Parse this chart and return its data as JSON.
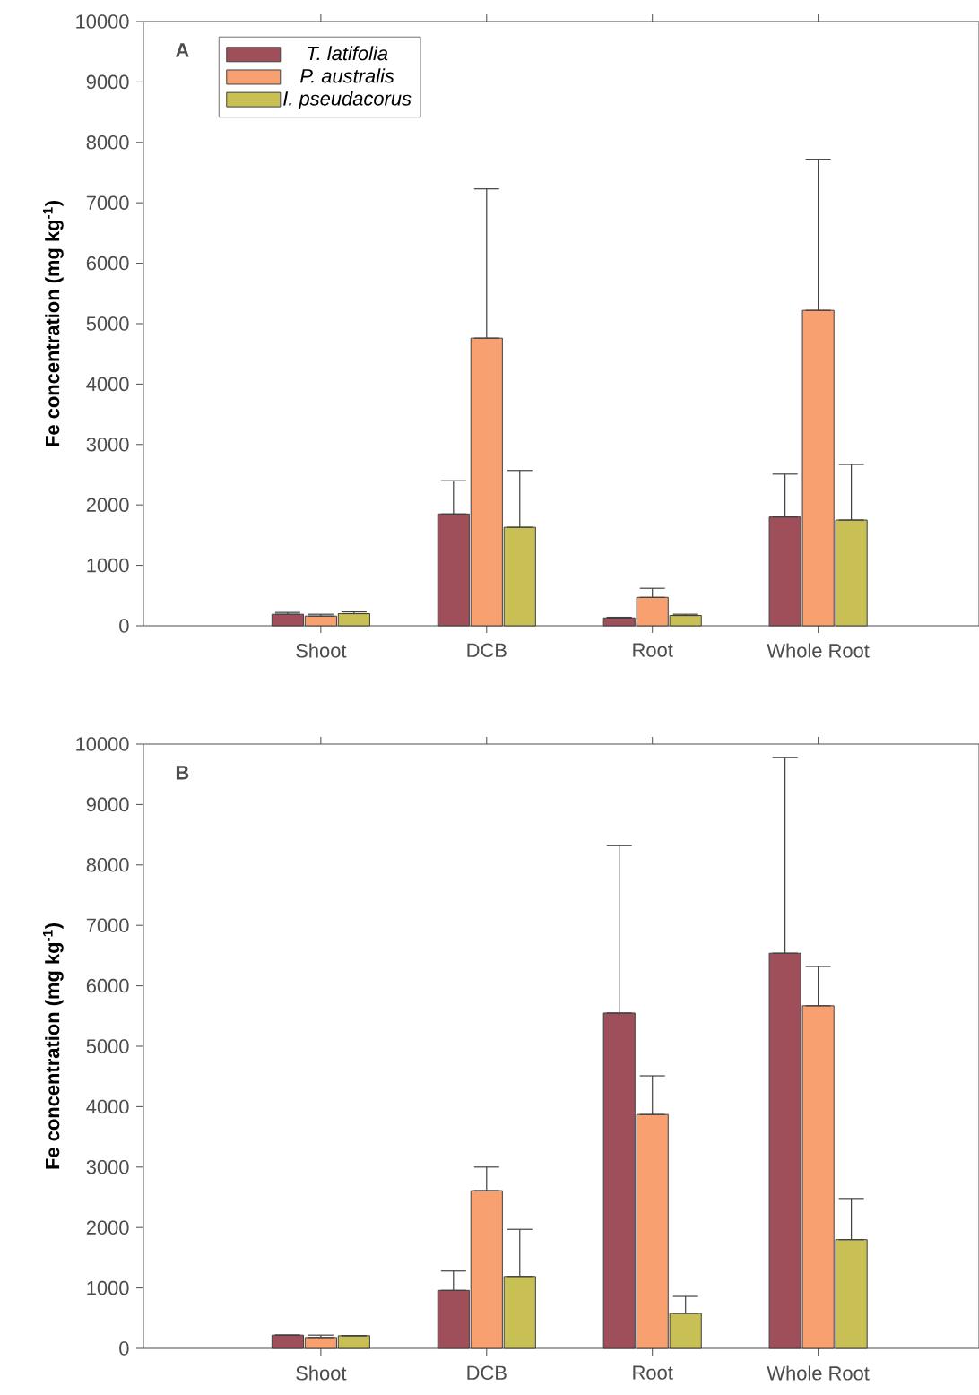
{
  "chart_data": [
    {
      "type": "bar",
      "ylabel": "Fe concentration (mg kg$^{-1}$)",
      "annotations": [
        "A"
      ],
      "categories": [
        "Shoot",
        "DCB",
        "Root",
        "Whole Root"
      ],
      "ylim": [
        0,
        10000
      ],
      "yticks": [
        0,
        1000,
        2000,
        3000,
        4000,
        5000,
        6000,
        7000,
        8000,
        9000,
        10000
      ],
      "legend": "top left",
      "series": [
        {
          "name": "T. latifolia",
          "color": "#9e4f5a",
          "values": [
            190,
            1850,
            130,
            1800
          ],
          "errors": [
            [
              190,
              220
            ],
            [
              1850,
              2400
            ],
            [
              130,
              140
            ],
            [
              1800,
              2510
            ]
          ]
        },
        {
          "name": "P. australis",
          "color": "#f9a070",
          "values": [
            160,
            4760,
            470,
            5220
          ],
          "errors": [
            [
              160,
              190
            ],
            [
              4760,
              7230
            ],
            [
              470,
              620
            ],
            [
              5220,
              7720
            ]
          ]
        },
        {
          "name": "I. pseudacorus",
          "color": "#c9c055",
          "values": [
            200,
            1630,
            170,
            1750
          ],
          "errors": [
            [
              200,
              230
            ],
            [
              1630,
              2570
            ],
            [
              170,
              190
            ],
            [
              1750,
              2670
            ]
          ]
        }
      ]
    },
    {
      "type": "bar",
      "ylabel": "Fe concentration (mg kg$^{-1}$)",
      "annotations": [
        "B"
      ],
      "categories": [
        "Shoot",
        "DCB",
        "Root",
        "Whole Root"
      ],
      "ylim": [
        0,
        10000
      ],
      "yticks": [
        0,
        1000,
        2000,
        3000,
        4000,
        5000,
        6000,
        7000,
        8000,
        9000,
        10000
      ],
      "series": [
        {
          "color": "#9e4f5a",
          "values": [
            220,
            960,
            5550,
            6540
          ],
          "errors": [
            null,
            [
              960,
              1280
            ],
            [
              5550,
              8320
            ],
            [
              6540,
              9780
            ]
          ]
        },
        {
          "color": "#f9a070",
          "values": [
            180,
            2610,
            3870,
            5670
          ],
          "errors": [
            [
              180,
              220
            ],
            [
              2610,
              3000
            ],
            [
              3870,
              4510
            ],
            [
              5670,
              6320
            ]
          ]
        },
        {
          "color": "#c9c055",
          "values": [
            210,
            1190,
            580,
            1800
          ],
          "errors": [
            null,
            [
              1190,
              1970
            ],
            [
              580,
              860
            ],
            [
              1800,
              2480
            ]
          ]
        }
      ]
    }
  ]
}
